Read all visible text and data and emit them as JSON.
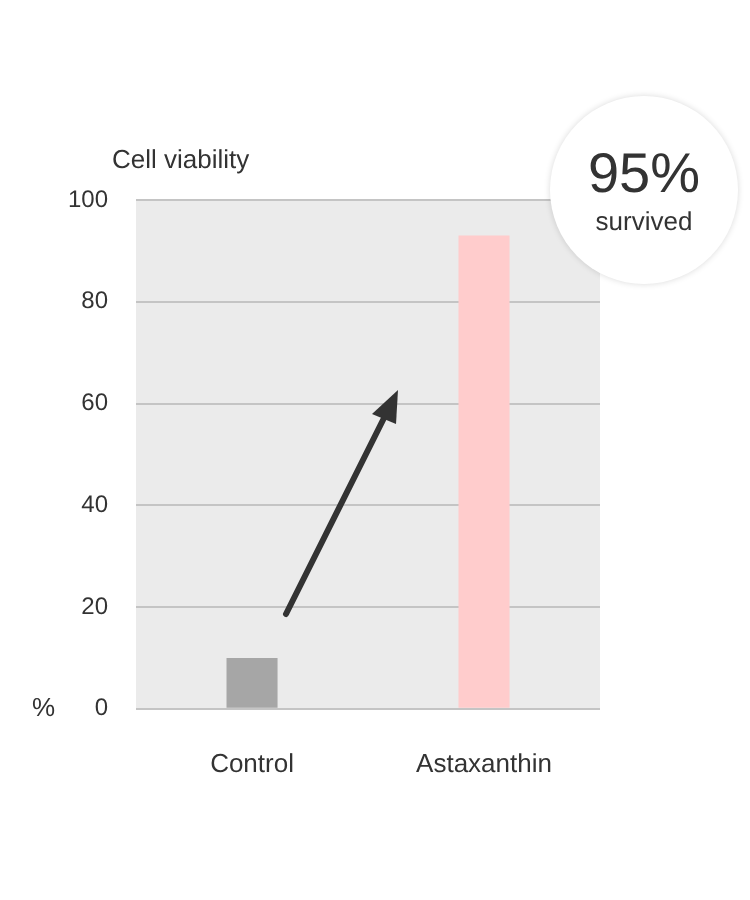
{
  "chart_data": {
    "type": "bar",
    "title": "Cell viability",
    "ylabel": "%",
    "categories": [
      "Control",
      "Astaxanthin"
    ],
    "values": [
      10,
      93
    ],
    "colors": [
      "#a6a6a6",
      "#ffcccc"
    ],
    "ylim": [
      0,
      100
    ],
    "yticks": [
      0,
      20,
      40,
      60,
      80,
      100
    ],
    "grid": "y",
    "annotations": [
      "95%",
      "survived"
    ]
  }
}
